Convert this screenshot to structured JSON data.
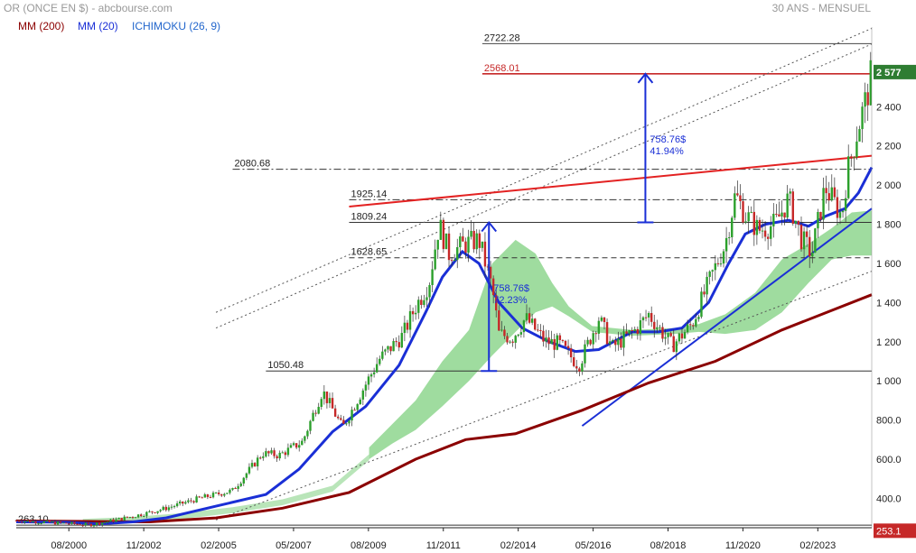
{
  "header": {
    "title": "OR (ONCE EN $) - abcbourse.com",
    "period": "30 ANS - MENSUEL",
    "legend": [
      {
        "label": "MM (200)",
        "color": "#8b0000"
      },
      {
        "label": "MM (20)",
        "color": "#1a2fd6"
      },
      {
        "label": "ICHIMOKU (26, 9)",
        "color": "#2266cc"
      }
    ]
  },
  "colors": {
    "up_candle": "#2ca02c",
    "down_candle": "#c62828",
    "mm200": "#8b0000",
    "mm20": "#1a2fd6",
    "cloud": "#7fd07f",
    "resistance": "#e32222",
    "trend": "#1a2fd6",
    "price_badge": "#2e7d32"
  },
  "chart_data": {
    "type": "candlestick",
    "title": "OR (ONCE EN $)",
    "period": "30 ANS - MENSUEL",
    "ylim": [
      250,
      2770
    ],
    "y_ticks": [
      400,
      600,
      800,
      1000,
      1200,
      1400,
      1600,
      1800,
      2000,
      2200,
      2400
    ],
    "y_tick_labels": [
      "400.0",
      "600.0",
      "800.0",
      "1 000",
      "1 200",
      "1 400",
      "1 600",
      "1 800",
      "2 000",
      "2 200",
      "2 400"
    ],
    "x_tick_labels": [
      "08/2000",
      "11/2002",
      "02/2005",
      "05/2007",
      "08/2009",
      "11/2011",
      "02/2014",
      "05/2016",
      "08/2018",
      "11/2020",
      "02/2023"
    ],
    "x_ticks_time": [
      2000.58,
      2002.83,
      2005.08,
      2007.33,
      2009.58,
      2011.83,
      2014.08,
      2016.33,
      2018.58,
      2020.83,
      2023.08
    ],
    "x_range": [
      1999.0,
      2024.7
    ],
    "current_price": {
      "label": "2 577",
      "value": 2577
    },
    "min_price": {
      "label": "253.1",
      "value": 253.1
    },
    "price_anchors": [
      [
        1999.0,
        287
      ],
      [
        1999.7,
        280
      ],
      [
        2001.2,
        265
      ],
      [
        2002.0,
        290
      ],
      [
        2002.8,
        320
      ],
      [
        2003.5,
        350
      ],
      [
        2004.5,
        400
      ],
      [
        2005.5,
        440
      ],
      [
        2006.4,
        630
      ],
      [
        2006.9,
        620
      ],
      [
        2007.6,
        690
      ],
      [
        2008.2,
        950
      ],
      [
        2008.8,
        760
      ],
      [
        2009.3,
        920
      ],
      [
        2009.9,
        1110
      ],
      [
        2010.6,
        1230
      ],
      [
        2011.0,
        1380
      ],
      [
        2011.4,
        1500
      ],
      [
        2011.7,
        1800
      ],
      [
        2012.0,
        1650
      ],
      [
        2012.5,
        1700
      ],
      [
        2012.9,
        1720
      ],
      [
        2013.3,
        1470
      ],
      [
        2013.5,
        1240
      ],
      [
        2013.9,
        1220
      ],
      [
        2014.3,
        1320
      ],
      [
        2014.9,
        1200
      ],
      [
        2015.3,
        1190
      ],
      [
        2015.9,
        1080
      ],
      [
        2016.5,
        1320
      ],
      [
        2016.9,
        1170
      ],
      [
        2017.6,
        1260
      ],
      [
        2018.0,
        1340
      ],
      [
        2018.7,
        1180
      ],
      [
        2019.3,
        1290
      ],
      [
        2019.8,
        1500
      ],
      [
        2020.3,
        1700
      ],
      [
        2020.6,
        1950
      ],
      [
        2020.9,
        1850
      ],
      [
        2021.3,
        1770
      ],
      [
        2021.8,
        1800
      ],
      [
        2022.2,
        1930
      ],
      [
        2022.6,
        1720
      ],
      [
        2022.9,
        1650
      ],
      [
        2023.3,
        1990
      ],
      [
        2023.8,
        1840
      ],
      [
        2023.95,
        2050
      ],
      [
        2024.3,
        2300
      ],
      [
        2024.55,
        2450
      ],
      [
        2024.7,
        2577
      ]
    ],
    "mm200_anchors": [
      [
        1999.0,
        285
      ],
      [
        2003.0,
        280
      ],
      [
        2005.0,
        300
      ],
      [
        2007.0,
        350
      ],
      [
        2009.0,
        430
      ],
      [
        2011.0,
        600
      ],
      [
        2012.5,
        700
      ],
      [
        2014.0,
        730
      ],
      [
        2016.0,
        850
      ],
      [
        2018.0,
        990
      ],
      [
        2020.0,
        1100
      ],
      [
        2022.0,
        1260
      ],
      [
        2024.7,
        1440
      ]
    ],
    "mm20_anchors": [
      [
        1999.0,
        280
      ],
      [
        2000.5,
        278
      ],
      [
        2001.5,
        270
      ],
      [
        2002.5,
        280
      ],
      [
        2003.5,
        300
      ],
      [
        2005.0,
        360
      ],
      [
        2006.5,
        420
      ],
      [
        2007.5,
        550
      ],
      [
        2008.5,
        740
      ],
      [
        2009.5,
        870
      ],
      [
        2010.5,
        1080
      ],
      [
        2011.3,
        1350
      ],
      [
        2011.8,
        1530
      ],
      [
        2012.4,
        1660
      ],
      [
        2012.9,
        1600
      ],
      [
        2013.5,
        1400
      ],
      [
        2014.2,
        1270
      ],
      [
        2015.0,
        1200
      ],
      [
        2015.8,
        1150
      ],
      [
        2016.5,
        1160
      ],
      [
        2017.5,
        1250
      ],
      [
        2018.3,
        1250
      ],
      [
        2019.0,
        1270
      ],
      [
        2019.8,
        1400
      ],
      [
        2020.4,
        1600
      ],
      [
        2020.9,
        1750
      ],
      [
        2021.5,
        1800
      ],
      [
        2022.2,
        1820
      ],
      [
        2022.8,
        1790
      ],
      [
        2023.3,
        1840
      ],
      [
        2023.9,
        1880
      ],
      [
        2024.3,
        1960
      ],
      [
        2024.7,
        2090
      ]
    ],
    "cloud_top": [
      [
        2009.6,
        660
      ],
      [
        2010.3,
        780
      ],
      [
        2011.0,
        900
      ],
      [
        2011.8,
        1100
      ],
      [
        2012.6,
        1260
      ],
      [
        2013.3,
        1600
      ],
      [
        2014.0,
        1720
      ],
      [
        2014.6,
        1650
      ],
      [
        2015.1,
        1500
      ],
      [
        2015.6,
        1380
      ],
      [
        2016.3,
        1280
      ],
      [
        2017.5,
        1260
      ],
      [
        2018.8,
        1270
      ],
      [
        2019.5,
        1290
      ],
      [
        2020.3,
        1340
      ],
      [
        2021.2,
        1450
      ],
      [
        2022.0,
        1620
      ],
      [
        2022.8,
        1700
      ],
      [
        2023.5,
        1780
      ],
      [
        2024.1,
        1860
      ],
      [
        2024.7,
        1870
      ]
    ],
    "cloud_bottom": [
      [
        2009.6,
        600
      ],
      [
        2010.3,
        680
      ],
      [
        2011.0,
        750
      ],
      [
        2011.8,
        870
      ],
      [
        2012.6,
        1000
      ],
      [
        2013.3,
        1130
      ],
      [
        2014.0,
        1250
      ],
      [
        2014.6,
        1350
      ],
      [
        2015.1,
        1380
      ],
      [
        2015.6,
        1330
      ],
      [
        2016.3,
        1250
      ],
      [
        2017.5,
        1230
      ],
      [
        2018.8,
        1240
      ],
      [
        2019.5,
        1250
      ],
      [
        2020.3,
        1240
      ],
      [
        2021.2,
        1260
      ],
      [
        2022.0,
        1350
      ],
      [
        2022.8,
        1500
      ],
      [
        2023.5,
        1620
      ],
      [
        2024.1,
        1640
      ],
      [
        2024.7,
        1640
      ]
    ],
    "cloud_lead": [
      [
        2001.0,
        270
      ],
      [
        2002.5,
        280
      ],
      [
        2004.0,
        300
      ],
      [
        2005.5,
        330
      ],
      [
        2007.0,
        370
      ],
      [
        2008.5,
        440
      ],
      [
        2009.6,
        600
      ]
    ],
    "horizontal_levels": [
      {
        "label": "2722.28",
        "value": 2722.28,
        "style": "solid",
        "color": "#444444",
        "from": 2013.0
      },
      {
        "label": "2568.01",
        "value": 2568.01,
        "style": "solid",
        "color": "#c62828",
        "from": 2013.0
      },
      {
        "label": "2080.68",
        "value": 2080.68,
        "style": "dashdot",
        "color": "#333333",
        "from": 2005.5
      },
      {
        "label": "1925.14",
        "value": 1925.14,
        "style": "dashdot",
        "color": "#333333",
        "from": 2009.0
      },
      {
        "label": "1809.24",
        "value": 1809.24,
        "style": "solid",
        "color": "#333333",
        "from": 2009.0
      },
      {
        "label": "1628.65",
        "value": 1628.65,
        "style": "dashed",
        "color": "#333333",
        "from": 2009.0
      },
      {
        "label": "1050.48",
        "value": 1050.48,
        "style": "solid",
        "color": "#333333",
        "from": 2006.5
      },
      {
        "label": "263.10",
        "value": 263.1,
        "style": "solid",
        "color": "#333333",
        "from": 1999.0
      }
    ],
    "measures": [
      {
        "x": 2013.2,
        "from": 1050.48,
        "to": 1809.24,
        "lines": [
          "758.76$",
          "72.23%"
        ]
      },
      {
        "x": 2017.9,
        "from": 1809.24,
        "to": 2568.01,
        "lines": [
          "758.76$",
          "41.94%"
        ]
      }
    ],
    "trendlines": [
      {
        "role": "resistance",
        "p1": [
          2009.0,
          1890
        ],
        "p2": [
          2024.7,
          2150
        ]
      },
      {
        "role": "support",
        "p1": [
          2016.0,
          770
        ],
        "p2": [
          2024.7,
          1880
        ]
      }
    ],
    "channel_lines": [
      [
        [
          2005.0,
          1350
        ],
        [
          2024.7,
          2800
        ]
      ],
      [
        [
          2005.0,
          1270
        ],
        [
          2024.7,
          2720
        ]
      ],
      [
        [
          2005.0,
          290
        ],
        [
          2024.7,
          1560
        ]
      ]
    ]
  }
}
